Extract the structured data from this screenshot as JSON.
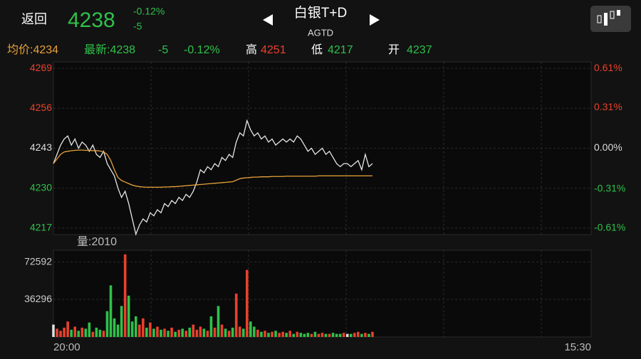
{
  "header": {
    "back": "返回",
    "price": "4238",
    "change_pct": "-0.12%",
    "change": "-5",
    "title": "白银T+D",
    "code": "AGTD"
  },
  "stats": {
    "avg": "均价:4234",
    "last": "最新:4238",
    "change": "-5",
    "change_pct": "-0.12%",
    "high_label": "高",
    "high": "4251",
    "low_label": "低",
    "low": "4217",
    "open_label": "开",
    "open": "4237"
  },
  "chart_data": [
    {
      "type": "line",
      "xlim": [
        0,
        150
      ],
      "xticks": [
        {
          "value": 0,
          "label": "20:00"
        },
        {
          "value": 150,
          "label": "15:30"
        }
      ],
      "ylim": [
        4214.9,
        4271.1
      ],
      "yticks": [
        4269,
        4256,
        4243,
        4230,
        4217
      ],
      "y2lim": [
        -0.66,
        0.66
      ],
      "y2ticks": [
        {
          "value": 0.61,
          "label": "0.61%"
        },
        {
          "value": 0.31,
          "label": "0.31%"
        },
        {
          "value": 0,
          "label": "0.00%"
        },
        {
          "value": -0.31,
          "label": "-0.31%"
        },
        {
          "value": -0.61,
          "label": "-0.61%"
        }
      ],
      "up_color": "#e8412c",
      "down_color": "#2fc14a",
      "flat_color": "#dddddd",
      "grid": true,
      "series": [
        {
          "name": "最新",
          "color": "#e6e6e6",
          "values": [
            4238,
            4241,
            4244,
            4246,
            4247,
            4244,
            4246,
            4243,
            4245,
            4244,
            4242,
            4244,
            4241,
            4240,
            4242,
            4238,
            4236,
            4234,
            4230,
            4227,
            4229,
            4225,
            4220,
            4215,
            4218,
            4220,
            4219,
            4222,
            4221,
            4223,
            4222,
            4225,
            4224,
            4226,
            4225,
            4227,
            4226,
            4228,
            4227,
            4229,
            4232,
            4236,
            4235,
            4237,
            4236,
            4238,
            4237,
            4240,
            4239,
            4241,
            4240,
            4245,
            4248,
            4247,
            4252,
            4249,
            4247,
            4248,
            4246,
            4247,
            4245,
            4246,
            4244,
            4245,
            4246,
            4245,
            4246,
            4245,
            4247,
            4246,
            4244,
            4242,
            4243,
            4241,
            4242,
            4243,
            4241,
            4242,
            4240,
            4238,
            4237,
            4238,
            4238,
            4237,
            4238,
            4239,
            4236,
            4241,
            4237,
            4238
          ]
        },
        {
          "name": "均价",
          "color": "#e8a23a",
          "values": [
            4238,
            4239.5,
            4241,
            4241.8,
            4242,
            4242.2,
            4242.3,
            4242.4,
            4242.4,
            4242.3,
            4242.3,
            4242.2,
            4242.2,
            4242.1,
            4241.8,
            4241,
            4239,
            4236,
            4233.5,
            4232.5,
            4232,
            4231.5,
            4231,
            4230.7,
            4230.5,
            4230.4,
            4230.3,
            4230.3,
            4230.3,
            4230.3,
            4230.3,
            4230.4,
            4230.4,
            4230.5,
            4230.5,
            4230.6,
            4230.7,
            4230.8,
            4230.9,
            4231,
            4231.1,
            4231.2,
            4231.3,
            4231.4,
            4231.5,
            4231.6,
            4231.7,
            4231.8,
            4231.9,
            4232,
            4232.1,
            4232.6,
            4233.1,
            4233.3,
            4233.4,
            4233.5,
            4233.6,
            4233.6,
            4233.7,
            4233.7,
            4233.7,
            4233.8,
            4233.8,
            4233.8,
            4233.8,
            4233.9,
            4233.9,
            4233.9,
            4233.9,
            4233.9,
            4233.9,
            4233.9,
            4233.9,
            4233.9,
            4234,
            4234,
            4234,
            4234,
            4234,
            4234,
            4234,
            4234,
            4234,
            4234,
            4234,
            4234,
            4234,
            4234,
            4234,
            4234
          ]
        }
      ]
    },
    {
      "type": "bar",
      "label": "量:2010",
      "ylim": [
        0,
        84000
      ],
      "yticks": [
        36296,
        72592
      ],
      "values": [
        12000,
        8000,
        6000,
        9000,
        15000,
        7000,
        10000,
        6000,
        9000,
        8000,
        14000,
        5000,
        9000,
        7000,
        6000,
        25000,
        50000,
        18000,
        12000,
        30000,
        80000,
        40000,
        15000,
        20000,
        12000,
        18000,
        9000,
        14000,
        8000,
        10000,
        7000,
        8000,
        6000,
        9000,
        5000,
        7000,
        8000,
        6000,
        9000,
        12000,
        7000,
        10000,
        8000,
        6000,
        20000,
        9000,
        30000,
        12000,
        8000,
        6000,
        9000,
        42000,
        10000,
        8000,
        65000,
        15000,
        10000,
        7000,
        5000,
        6000,
        4000,
        5000,
        6000,
        4000,
        5000,
        4000,
        6000,
        3000,
        5000,
        4000,
        3000,
        4000,
        3000,
        5000,
        3000,
        4000,
        3000,
        3000,
        4000,
        3000,
        3000,
        4000,
        3000,
        3000,
        4000,
        5000,
        3000,
        4000,
        3000,
        5000
      ]
    }
  ]
}
